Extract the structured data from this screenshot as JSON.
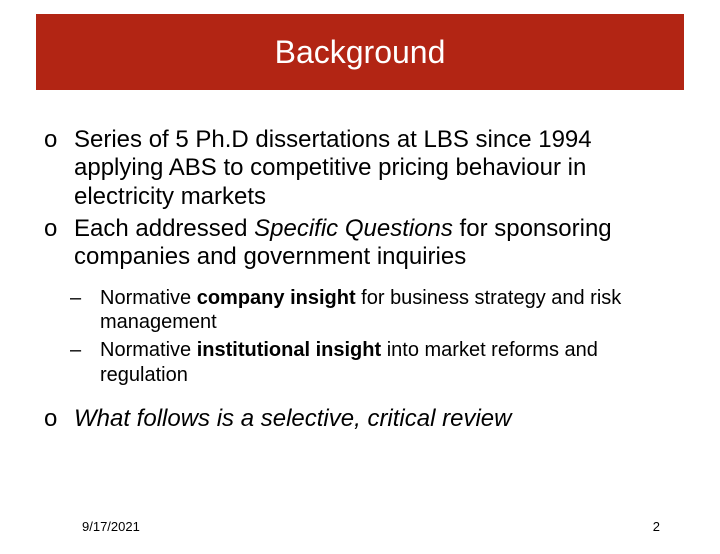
{
  "title": "Background",
  "colors": {
    "title_bg_outer": "#000000",
    "title_bg_inner": "#b22514",
    "title_text": "#ffffff",
    "body_text": "#000000",
    "page_bg": "#ffffff"
  },
  "typography": {
    "title_fontsize": 32,
    "l1_fontsize": 24,
    "l2_fontsize": 20,
    "footer_fontsize": 13,
    "font_family": "Arial"
  },
  "bullets": {
    "l1": [
      {
        "parts": [
          {
            "text": "Series of 5 Ph.D dissertations at LBS since 1994 applying ABS to competitive pricing behaviour in electricity markets",
            "style": "normal"
          }
        ]
      },
      {
        "parts": [
          {
            "text": "Each addressed ",
            "style": "normal"
          },
          {
            "text": "Specific Questions",
            "style": "italic"
          },
          {
            "text": " for sponsoring companies and government inquiries",
            "style": "normal"
          }
        ],
        "children": [
          {
            "parts": [
              {
                "text": "Normative ",
                "style": "normal"
              },
              {
                "text": "company insight",
                "style": "bold"
              },
              {
                "text": " for business strategy and risk management",
                "style": "normal"
              }
            ]
          },
          {
            "parts": [
              {
                "text": "Normative ",
                "style": "normal"
              },
              {
                "text": "institutional insight",
                "style": "bold"
              },
              {
                "text": " into market reforms and regulation",
                "style": "normal"
              }
            ]
          }
        ]
      },
      {
        "parts": [
          {
            "text": "What follows is a selective, critical review",
            "style": "italic"
          }
        ]
      }
    ]
  },
  "footer": {
    "date": "9/17/2021",
    "page": "2"
  }
}
